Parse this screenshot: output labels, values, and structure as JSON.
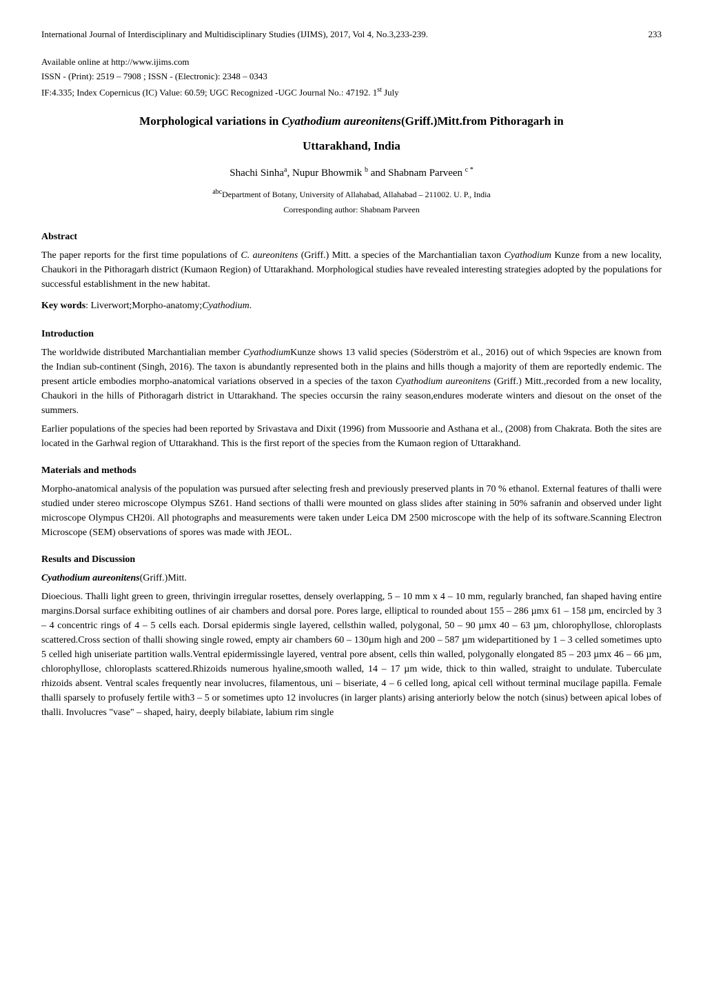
{
  "running_header": {
    "journal_text": "International Journal of Interdisciplinary and Multidisciplinary Studies (IJIMS), 2017, Vol 4, No.3,233-239.",
    "page_number": "233"
  },
  "meta": {
    "available": "Available online at http://www.ijims.com",
    "issn": "ISSN - (Print): 2519 – 7908 ; ISSN - (Electronic): 2348 – 0343",
    "impact": "IF:4.335; Index Copernicus (IC) Value: 60.59; UGC Recognized -UGC Journal No.: 47192.    1",
    "impact_sup": "st",
    "impact_tail": " July"
  },
  "title": {
    "line1_pre": "Morphological variations in ",
    "line1_italic": "Cyathodium aureonitens",
    "line1_post": "(Griff.)Mitt.from Pithoragarh in",
    "line2": "Uttarakhand, India"
  },
  "authors": {
    "a1": "Shachi Sinha",
    "a1_sup": "a",
    "sep1": ", ",
    "a2": "Nupur Bhowmik ",
    "a2_sup": "b",
    "sep2": " and ",
    "a3": "Shabnam Parveen ",
    "a3_sup": "c *"
  },
  "affiliation": {
    "sup": "abc",
    "text": "Department of Botany, University of Allahabad, Allahabad – 211002. U. P., India"
  },
  "corresponding": "Corresponding author: Shabnam Parveen",
  "abstract": {
    "heading": "Abstract",
    "p1_pre": "The paper reports for the first time populations of ",
    "p1_i1": "C. aureonitens",
    "p1_mid": " (Griff.) Mitt. a species of the Marchantialian taxon ",
    "p1_i2": "Cyathodium",
    "p1_post": " Kunze from a new locality, Chaukori in the Pithoragarh district (Kumaon Region) of Uttarakhand. Morphological studies have revealed interesting strategies adopted by the populations for successful establishment in the new habitat."
  },
  "keywords": {
    "label": "Key words",
    "colon": ": ",
    "text": "Liverwort;Morpho-anatomy;",
    "italic": "Cyathodium",
    "period": "."
  },
  "introduction": {
    "heading": "Introduction",
    "p1_pre": "The worldwide distributed Marchantialian member ",
    "p1_i1": "Cyathodium",
    "p1_mid1": "Kunze shows 13 valid species (Söderström et al., 2016) out of which 9species are known from the Indian sub-continent (Singh, 2016). The taxon is abundantly represented both in the plains and hills though a majority of them are reportedly endemic. The present article embodies morpho-anatomical variations observed in a species of the taxon ",
    "p1_i2": "Cyathodium aureonitens",
    "p1_post": " (Griff.) Mitt.,recorded from a new locality, Chaukori in the hills of Pithoragarh district in Uttarakhand. The species occursin the rainy season,endures moderate winters and diesout on the onset of the summers.",
    "p2": "Earlier populations of the species had been reported by Srivastava and Dixit (1996) from Mussoorie and Asthana et al., (2008) from Chakrata. Both the sites are located in the Garhwal region of Uttarakhand. This is the first report of the species from the Kumaon region of Uttarakhand."
  },
  "methods": {
    "heading": "Materials and methods",
    "p1": "Morpho-anatomical analysis of the population was pursued after selecting fresh and previously preserved plants in 70 % ethanol. External features of thalli were studied under stereo microscope Olympus SZ61. Hand sections of thalli were mounted on glass slides after staining in 50% safranin and observed under light microscope Olympus CH20i. All photographs and measurements were taken under Leica DM 2500 microscope with the help of its software.Scanning Electron Microscope (SEM) observations of spores was made with JEOL."
  },
  "results": {
    "heading": "Results and Discussion",
    "species_italic": "Cyathodium aureonitens",
    "species_post": "(Griff.)Mitt.",
    "p1": "Dioecious. Thalli light green to green, thrivingin irregular rosettes, densely overlapping, 5 – 10 mm x 4 – 10 mm, regularly branched, fan shaped having entire margins.Dorsal surface exhibiting outlines of air chambers and dorsal pore. Pores large, elliptical to rounded about 155 – 286 µmx 61 – 158 µm, encircled by 3 – 4 concentric rings of 4 – 5 cells each. Dorsal epidermis single layered, cellsthin walled, polygonal, 50 – 90 µmx 40 – 63 µm, chlorophyllose, chloroplasts scattered.Cross section of thalli showing single rowed, empty air chambers 60 – 130µm high and 200 – 587 µm widepartitioned by 1 – 3 celled sometimes upto 5 celled high uniseriate partition walls.Ventral epidermissingle layered, ventral pore absent, cells thin walled, polygonally elongated 85 – 203 µmx 46 – 66 µm, chlorophyllose, chloroplasts scattered.Rhizoids numerous hyaline,smooth walled, 14 – 17 µm wide, thick to thin walled, straight to undulate. Tuberculate rhizoids absent. Ventral scales frequently near involucres, filamentous, uni – biseriate, 4 – 6 celled long, apical cell without terminal mucilage papilla. Female thalli sparsely to profusely fertile with3 – 5 or sometimes upto 12 involucres (in larger plants) arising anteriorly below the notch (sinus) between apical lobes of thalli. Involucres \"vase\" – shaped, hairy, deeply bilabiate, labium rim single"
  }
}
